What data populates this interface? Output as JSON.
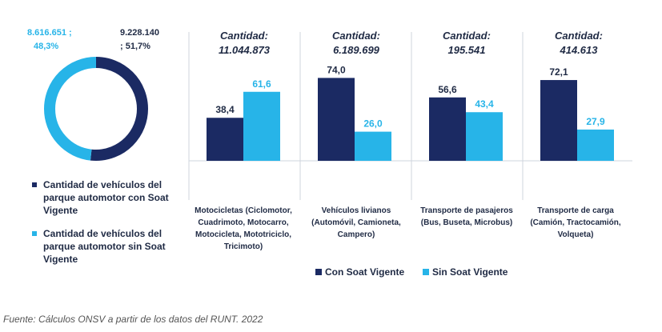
{
  "colors": {
    "con": "#1b2a63",
    "sin": "#27b4e8",
    "divider": "#cfd4dd"
  },
  "donut": {
    "sin_label": [
      "8.616.651 ;",
      "48,3%"
    ],
    "con_label": [
      "9.228.140",
      "; 51,7%"
    ],
    "sin_pct": 48.3,
    "con_pct": 51.7
  },
  "left_legend": [
    {
      "text": "Cantidad de vehículos del parque automotor con Soat Vigente"
    },
    {
      "text": "Cantidad de vehículos del parque automotor sin Soat Vigente"
    }
  ],
  "chart_data": {
    "type": "bar",
    "categories": [
      "Motocicletas (Ciclomotor, Cuadrimoto, Motocarro, Motocicleta, Mototriciclo, Tricimoto)",
      "Vehículos livianos (Automóvil, Camioneta, Campero)",
      "Transporte de pasajeros (Bus, Buseta, Microbus)",
      "Transporte de carga (Camión, Tractocamión, Volqueta)"
    ],
    "quantity_prefix": "Cantidad:",
    "quantities": [
      "11.044.873",
      "6.189.699",
      "195.541",
      "414.613"
    ],
    "series": [
      {
        "name": "Con Soat Vigente",
        "values": [
          38.4,
          74.0,
          56.6,
          72.1
        ],
        "labels": [
          "38,4",
          "74,0",
          "56,6",
          "72,1"
        ]
      },
      {
        "name": "Sin Soat Vigente",
        "values": [
          61.6,
          26.0,
          43.4,
          27.9
        ],
        "labels": [
          "61,6",
          "26,0",
          "43,4",
          "27,9"
        ]
      }
    ],
    "ylim": [
      0,
      90
    ]
  },
  "legend": {
    "con_label": "Con Soat Vigente",
    "sin_label": "Sin Soat Vigente"
  },
  "source": "Fuente: Cálculos ONSV a partir de los datos del RUNT. 2022"
}
